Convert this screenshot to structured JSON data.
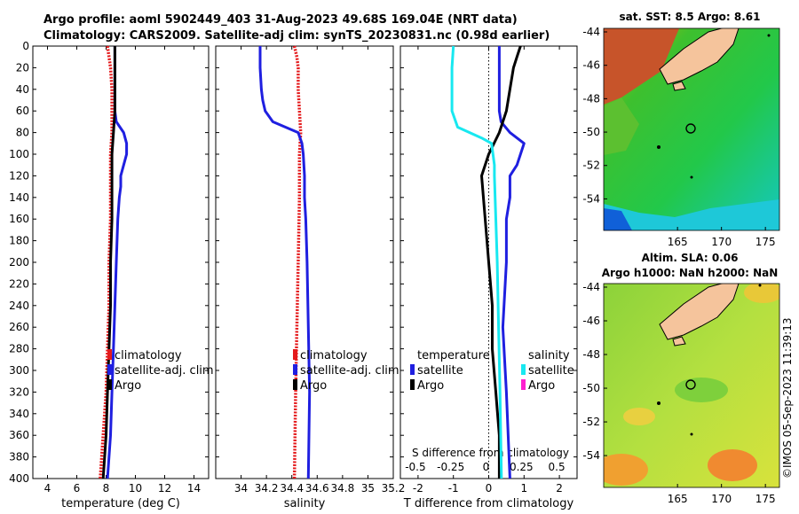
{
  "header": {
    "line1": "Argo profile: aoml 5902449_403 31-Aug-2023 49.68S 169.04E (NRT data)",
    "line2": "Climatology: CARS2009. Satellite-adj clim: synTS_20230831.nc (0.98d earlier)"
  },
  "stamp": "©IMOS 05-Sep-2023 11:39:13",
  "colors": {
    "climatology": "#e41a1c",
    "satellite": "#1f1fe0",
    "argo": "#000000",
    "salinity_sat": "#18e8f0",
    "salinity_argo": "#ff1fd0",
    "land": "#f5c49c"
  },
  "chart_data": [
    {
      "type": "line",
      "id": "temperature",
      "xlabel": "temperature (deg C)",
      "ylabel": "",
      "xlim": [
        3,
        15
      ],
      "ylim": [
        400,
        0
      ],
      "x_ticks": [
        4,
        6,
        8,
        10,
        12,
        14
      ],
      "x_tick_labels": [
        "4",
        "6",
        "8",
        "10",
        "12",
        "14"
      ],
      "y_ticks": [
        0,
        20,
        40,
        60,
        80,
        100,
        120,
        140,
        160,
        180,
        200,
        220,
        240,
        260,
        280,
        300,
        320,
        340,
        360,
        380,
        400
      ],
      "y_tick_labels": [
        "0",
        "20",
        "40",
        "60",
        "80",
        "100",
        "120",
        "140",
        "160",
        "180",
        "200",
        "220",
        "240",
        "260",
        "280",
        "300",
        "320",
        "340",
        "360",
        "380",
        "400"
      ],
      "legend": [
        "climatology",
        "satellite-adj. clim",
        "Argo"
      ],
      "series": [
        {
          "name": "climatology",
          "color": "#e41a1c",
          "style": "dotted",
          "depth": [
            0,
            10,
            20,
            40,
            60,
            80,
            100,
            120,
            140,
            160,
            200,
            240,
            280,
            320,
            360,
            400
          ],
          "values": [
            8.1,
            8.2,
            8.3,
            8.4,
            8.4,
            8.4,
            8.3,
            8.3,
            8.3,
            8.3,
            8.2,
            8.2,
            8.1,
            8.0,
            7.8,
            7.6
          ]
        },
        {
          "name": "satellite-adj. clim",
          "color": "#1f1fe0",
          "style": "solid",
          "depth": [
            0,
            20,
            40,
            60,
            70,
            80,
            90,
            100,
            110,
            120,
            130,
            140,
            160,
            200,
            240,
            280,
            320,
            360,
            400
          ],
          "values": [
            8.6,
            8.6,
            8.6,
            8.6,
            8.7,
            9.2,
            9.4,
            9.4,
            9.2,
            9.0,
            9.0,
            8.9,
            8.8,
            8.7,
            8.6,
            8.5,
            8.4,
            8.3,
            8.1
          ]
        },
        {
          "name": "Argo",
          "color": "#000000",
          "style": "solid",
          "depth": [
            0,
            20,
            40,
            60,
            80,
            100,
            120,
            160,
            200,
            240,
            280,
            320,
            360,
            400
          ],
          "values": [
            8.6,
            8.6,
            8.6,
            8.6,
            8.5,
            8.4,
            8.4,
            8.4,
            8.3,
            8.3,
            8.2,
            8.1,
            8.0,
            7.8
          ]
        }
      ]
    },
    {
      "type": "line",
      "id": "salinity",
      "xlabel": "salinity",
      "ylabel": "",
      "xlim": [
        33.8,
        35.2
      ],
      "ylim": [
        400,
        0
      ],
      "x_ticks": [
        34,
        34.2,
        34.4,
        34.6,
        34.8,
        35,
        35.2
      ],
      "x_tick_labels": [
        "34",
        "34.2",
        "34.4",
        "34.6",
        "34.8",
        "35",
        "35.2"
      ],
      "legend": [
        "climatology",
        "satellite-adj. clim",
        "Argo"
      ],
      "series": [
        {
          "name": "climatology",
          "color": "#e41a1c",
          "style": "dotted",
          "depth": [
            0,
            10,
            20,
            40,
            60,
            80,
            100,
            140,
            200,
            260,
            320,
            400
          ],
          "values": [
            34.42,
            34.44,
            34.45,
            34.45,
            34.46,
            34.47,
            34.46,
            34.46,
            34.45,
            34.44,
            34.43,
            34.42
          ]
        },
        {
          "name": "satellite-adj. clim",
          "color": "#1f1fe0",
          "style": "solid",
          "depth": [
            0,
            20,
            40,
            50,
            60,
            70,
            80,
            90,
            100,
            120,
            140,
            160,
            200,
            260,
            320,
            400
          ],
          "values": [
            34.15,
            34.15,
            34.16,
            34.17,
            34.19,
            34.25,
            34.45,
            34.48,
            34.49,
            34.5,
            34.5,
            34.51,
            34.52,
            34.53,
            34.54,
            34.53
          ]
        },
        {
          "name": "Argo",
          "color": "#000000",
          "style": "solid",
          "depth": [],
          "values": []
        }
      ]
    },
    {
      "type": "line",
      "id": "difference",
      "xlabel": "T difference from climatology",
      "xlabel_top": "S difference from climatology",
      "xlim": [
        -2.5,
        2.5
      ],
      "ylim": [
        400,
        0
      ],
      "x_ticks": [
        -2,
        -1,
        0,
        1,
        2
      ],
      "x_tick_labels": [
        "-2",
        "-1",
        "0",
        "1",
        "2"
      ],
      "x2_ticks": [
        -0.5,
        -0.25,
        0,
        0.25,
        0.5
      ],
      "x2_tick_labels": [
        "-0.5",
        "-0.25",
        "0",
        "0.25",
        "0.5"
      ],
      "legend_left_title": "temperature",
      "legend_right_title": "salinity",
      "legend_left": [
        "satellite",
        "Argo"
      ],
      "legend_right": [
        "satellite",
        "Argo"
      ],
      "series": [
        {
          "name": "temperature satellite",
          "color": "#1f1fe0",
          "depth": [
            0,
            20,
            40,
            60,
            70,
            80,
            90,
            100,
            110,
            120,
            140,
            160,
            200,
            260,
            320,
            400
          ],
          "values": [
            0.3,
            0.3,
            0.3,
            0.3,
            0.35,
            0.6,
            1.0,
            0.9,
            0.8,
            0.6,
            0.6,
            0.5,
            0.5,
            0.4,
            0.5,
            0.6
          ]
        },
        {
          "name": "temperature Argo",
          "color": "#000000",
          "depth": [
            0,
            10,
            20,
            40,
            60,
            80,
            100,
            120,
            160,
            200,
            240,
            280,
            320,
            360,
            400
          ],
          "values": [
            0.9,
            0.8,
            0.7,
            0.6,
            0.5,
            0.3,
            0.0,
            -0.2,
            -0.1,
            0.0,
            0.1,
            0.1,
            0.2,
            0.3,
            0.3
          ]
        },
        {
          "name": "salinity satellite",
          "color": "#18e8f0",
          "depth": [
            0,
            20,
            40,
            60,
            75,
            85,
            90,
            100,
            110,
            120,
            160,
            200,
            260,
            320,
            400
          ],
          "values": [
            -0.25,
            -0.26,
            -0.26,
            -0.26,
            -0.22,
            -0.05,
            0.02,
            0.03,
            0.04,
            0.04,
            0.05,
            0.06,
            0.07,
            0.08,
            0.09
          ]
        },
        {
          "name": "salinity Argo",
          "color": "#ff1fd0",
          "depth": [],
          "values": []
        }
      ]
    }
  ],
  "maps": {
    "sst": {
      "title": "sat. SST: 8.5 Argo: 8.61",
      "x_ticks": [
        "165",
        "170",
        "175"
      ],
      "y_ticks": [
        "-44",
        "-46",
        "-48",
        "-50",
        "-52",
        "-54"
      ]
    },
    "sla": {
      "title1": "Altim. SLA: 0.06",
      "title2": "Argo h1000: NaN h2000: NaN",
      "x_ticks": [
        "165",
        "170",
        "175"
      ],
      "y_ticks": [
        "-44",
        "-46",
        "-48",
        "-50",
        "-52",
        "-54"
      ]
    }
  }
}
